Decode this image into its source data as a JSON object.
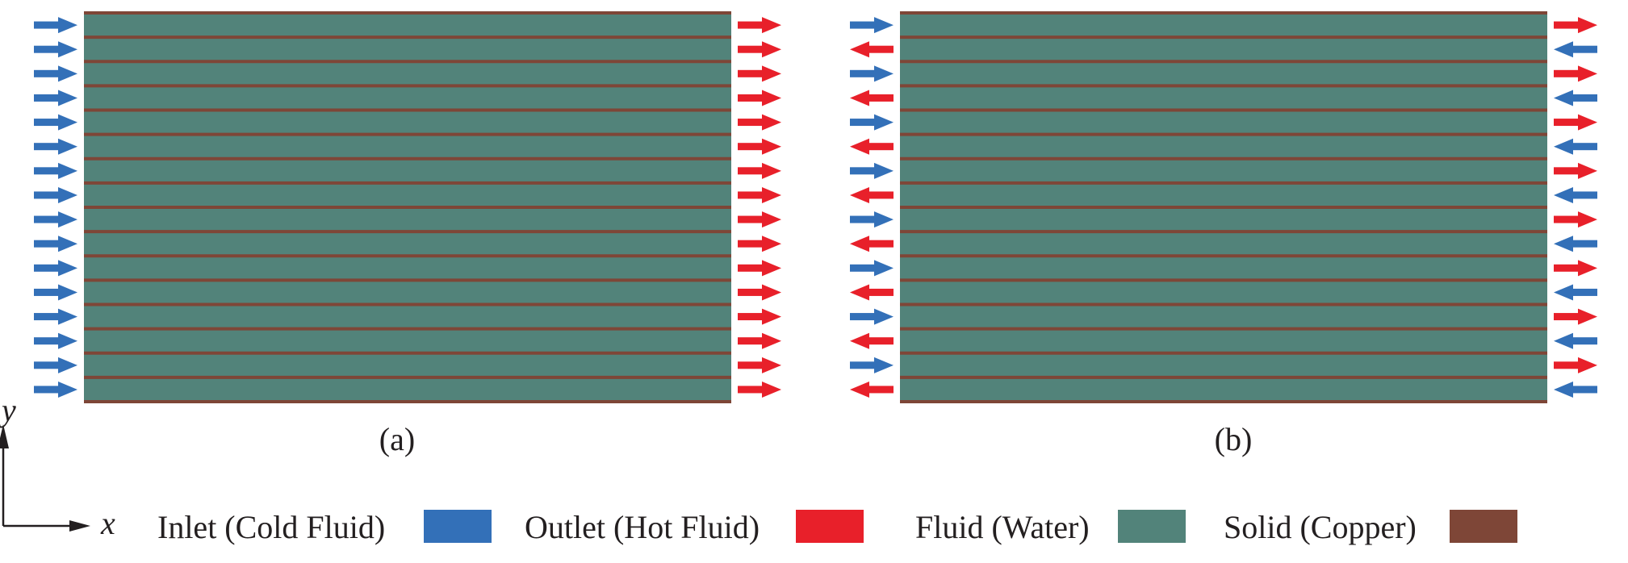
{
  "panels": [
    {
      "label": "(a)",
      "flow": "parallel"
    },
    {
      "label": "(b)",
      "flow": "counter"
    }
  ],
  "channel_count": 16,
  "axes": {
    "x_label": "x",
    "y_label": "y"
  },
  "legend": [
    {
      "label": "Inlet (Cold Fluid)",
      "color": "#3370b8"
    },
    {
      "label": "Outlet (Hot Fluid)",
      "color": "#e8202a"
    },
    {
      "label": "Fluid (Water)",
      "color": "#52837a"
    },
    {
      "label": "Solid (Copper)",
      "color": "#7e4637"
    }
  ],
  "colors": {
    "inlet": "#3370b8",
    "outlet": "#e8202a",
    "fluid": "#52837a",
    "solid": "#7e4637",
    "text": "#231f20"
  }
}
